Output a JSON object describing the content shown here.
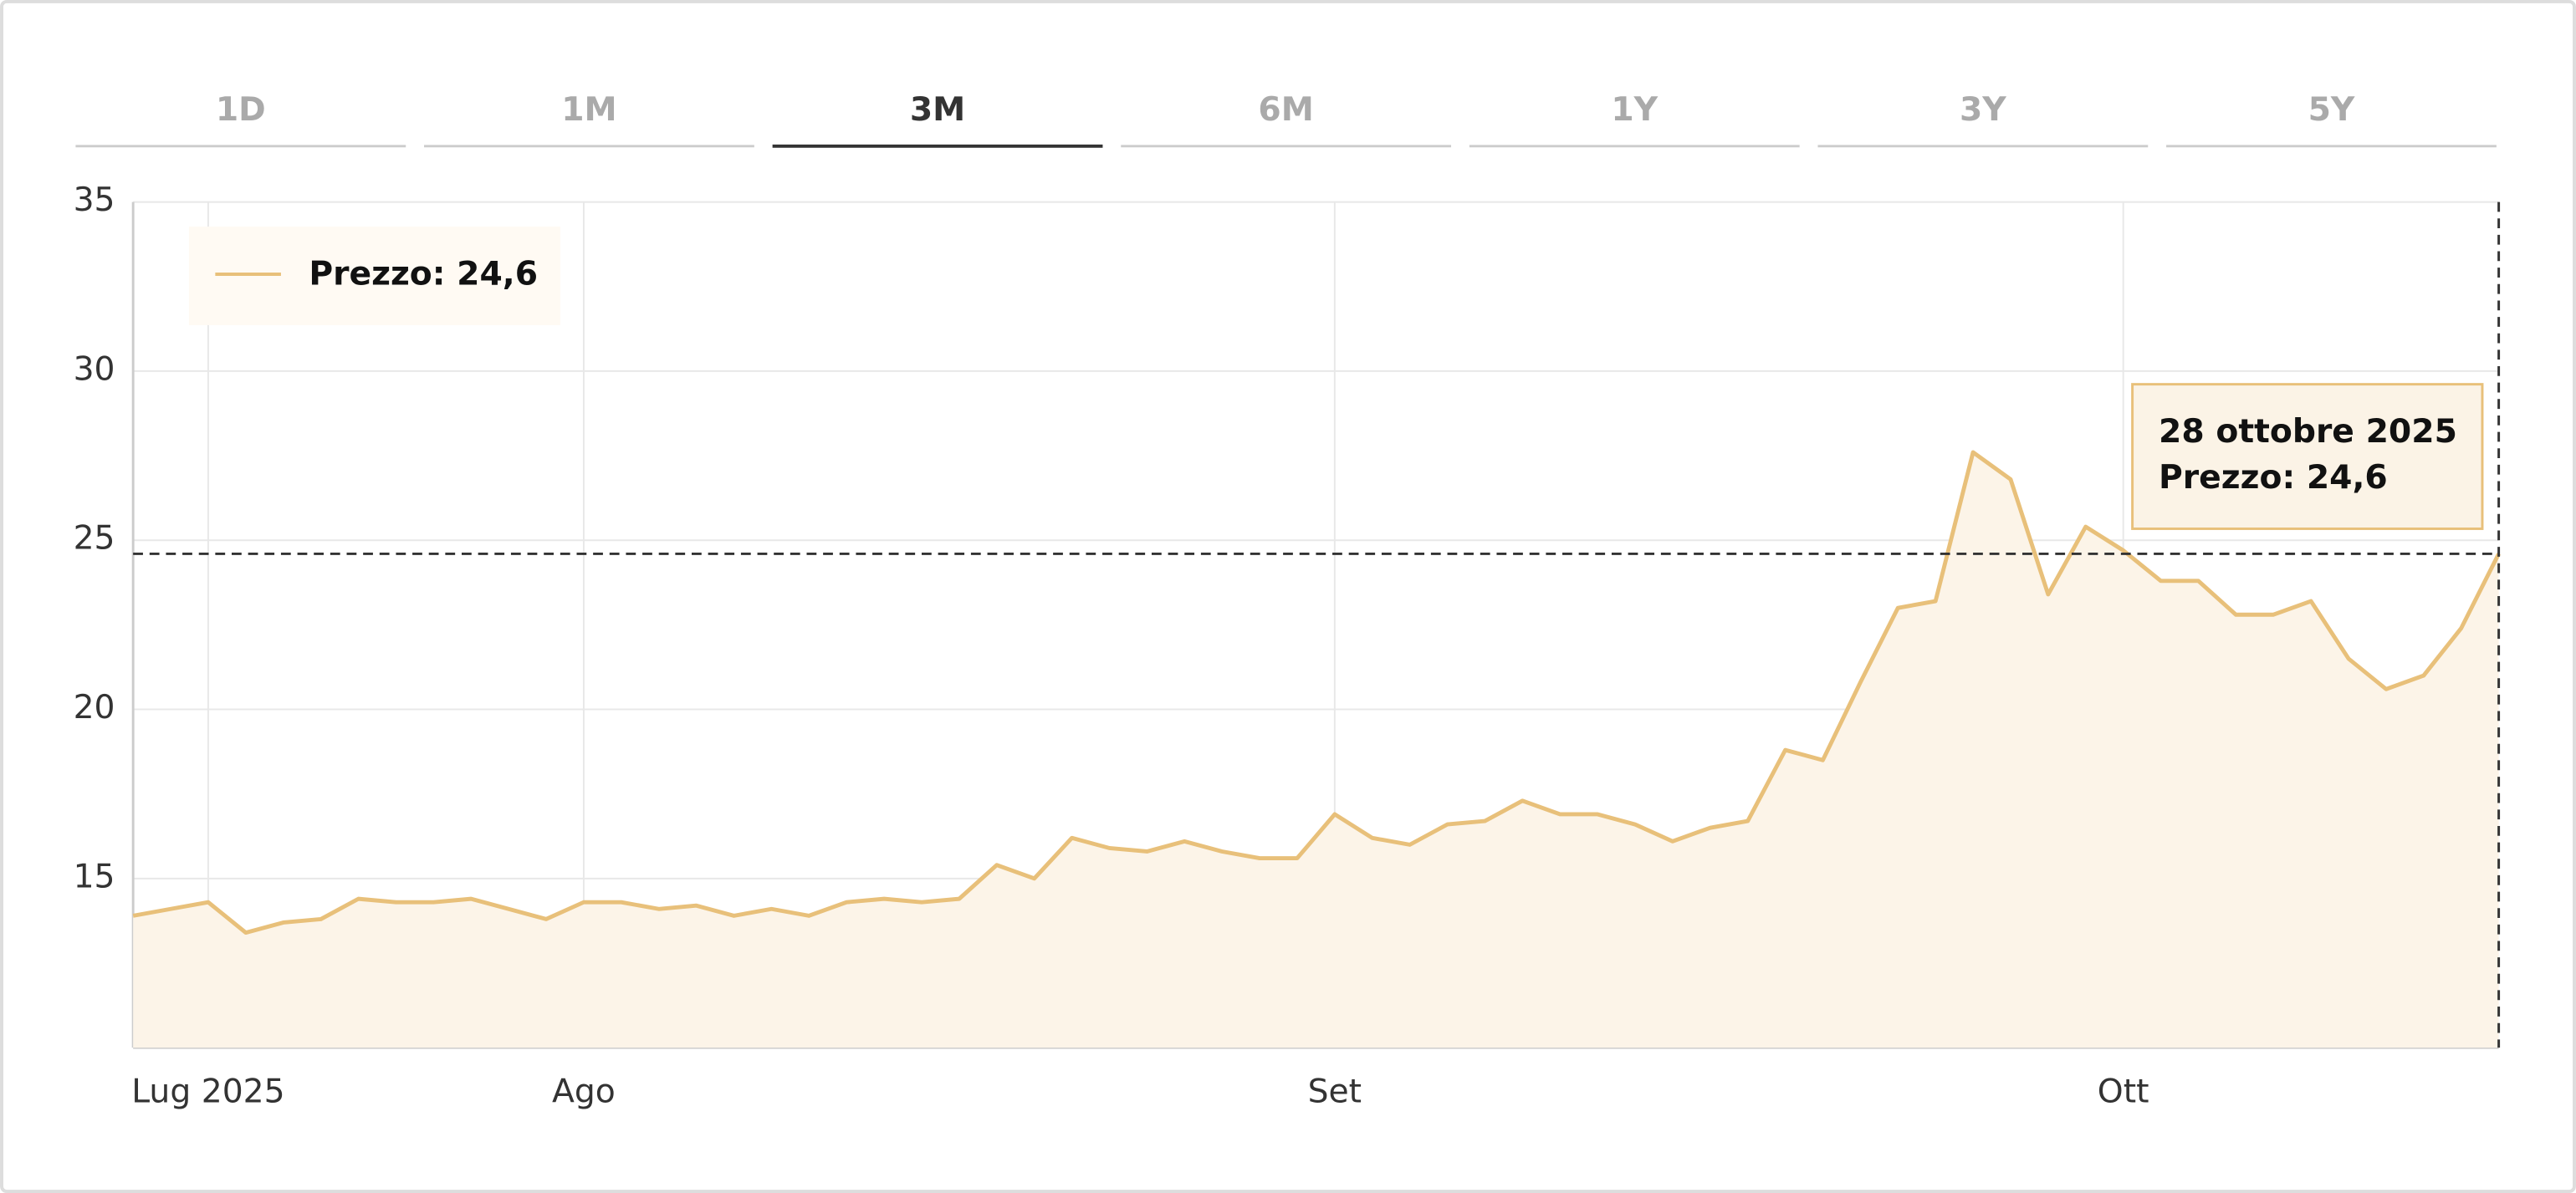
{
  "tabs": {
    "items": [
      "1D",
      "1M",
      "3M",
      "6M",
      "1Y",
      "3Y",
      "5Y"
    ],
    "active": 2
  },
  "chart_data": {
    "type": "line",
    "categories": [
      null,
      null,
      "Lug 2025",
      null,
      null,
      null,
      null,
      null,
      null,
      null,
      null,
      null,
      "Ago",
      null,
      null,
      null,
      null,
      null,
      null,
      null,
      null,
      null,
      null,
      null,
      null,
      null,
      null,
      null,
      null,
      null,
      null,
      null,
      "Set",
      null,
      null,
      null,
      null,
      null,
      null,
      null,
      null,
      null,
      null,
      null,
      null,
      null,
      null,
      null,
      null,
      null,
      null,
      null,
      null,
      "Ott",
      null,
      null,
      null,
      null,
      null,
      null,
      null,
      null,
      null,
      null
    ],
    "series": [
      {
        "name": "Prezzo: 24,6",
        "color": "#e8c07a",
        "values": [
          13.9,
          14.1,
          14.3,
          13.4,
          13.7,
          13.8,
          14.4,
          14.3,
          14.3,
          14.4,
          14.1,
          13.8,
          14.3,
          14.3,
          14.1,
          14.2,
          13.9,
          14.1,
          13.9,
          14.3,
          14.4,
          14.3,
          14.4,
          15.4,
          15.0,
          16.2,
          15.9,
          15.8,
          16.1,
          15.8,
          15.6,
          15.6,
          16.9,
          16.2,
          16.0,
          16.6,
          16.7,
          17.3,
          16.9,
          16.9,
          16.6,
          16.1,
          16.5,
          16.7,
          18.8,
          18.5,
          20.8,
          23.0,
          23.2,
          27.6,
          26.8,
          23.4,
          25.4,
          24.7,
          23.8,
          23.8,
          22.8,
          22.8,
          23.2,
          21.5,
          20.6,
          21.0,
          22.4,
          24.6
        ]
      }
    ],
    "ylim": [
      10,
      35
    ],
    "yticks": [
      15,
      20,
      25,
      30,
      35
    ],
    "grid": true,
    "tooltip": {
      "title": "28 ottobre 2025",
      "text": "Prezzo: 24,6"
    }
  }
}
